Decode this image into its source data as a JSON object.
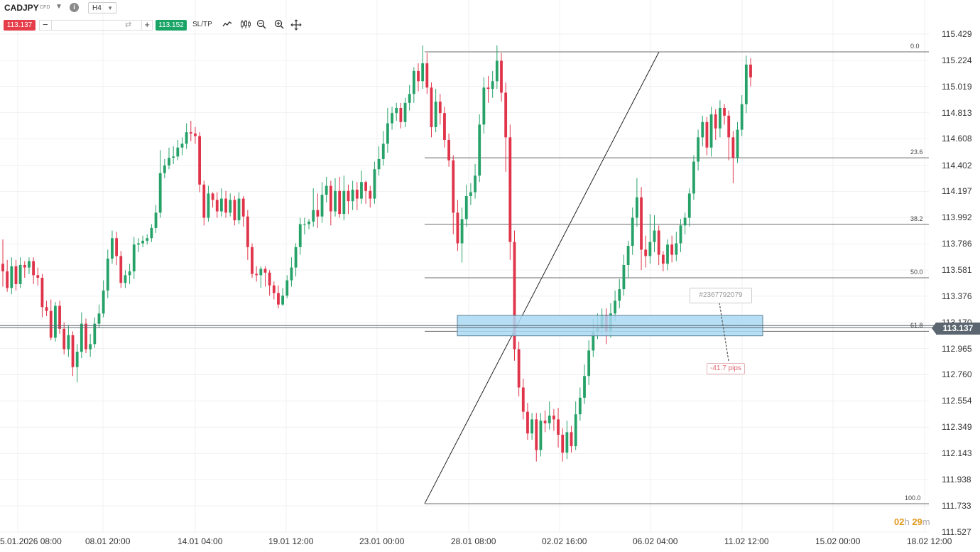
{
  "toolbar": {
    "symbol": "CADJPY",
    "instrument_type": "CFD",
    "dropdown_icon": "chevron-down-icon",
    "info_icon": "info-icon",
    "timeframe": "H4",
    "sell_price": "113.137",
    "buy_price": "113.152",
    "quantity_value": "",
    "sltp_label": "SL/TP",
    "tools": [
      "line-chart-icon",
      "candlestick-icon",
      "zoom-out-icon",
      "zoom-in-icon",
      "crosshair-icon"
    ],
    "sell_color": "#e53e4a",
    "buy_color": "#1aa567"
  },
  "price_axis": {
    "labels": [
      "115.429",
      "115.224",
      "115.019",
      "114.813",
      "114.608",
      "114.402",
      "114.197",
      "113.992",
      "113.786",
      "113.581",
      "113.376",
      "113.170",
      "112.965",
      "112.760",
      "112.554",
      "112.349",
      "112.143",
      "111.938",
      "111.733",
      "111.527"
    ],
    "current_price": "113.137"
  },
  "time_axis": {
    "labels": [
      "5.01.2026 08:00",
      "08.01 20:00",
      "14.01 04:00",
      "19.01 12:00",
      "23.01 00:00",
      "28.01 08:00",
      "02.02 16:00",
      "06.02 04:00",
      "11.02 12:00",
      "15.02 00:00",
      "18.02 12:00"
    ]
  },
  "fibonacci": {
    "levels": [
      {
        "label": "0.0",
        "price": 115.29
      },
      {
        "label": "23.6",
        "price": 114.46
      },
      {
        "label": "38.2",
        "price": 113.94
      },
      {
        "label": "50.0",
        "price": 113.52
      },
      {
        "label": "61.8",
        "price": 113.1
      },
      {
        "label": "100.0",
        "price": 111.75
      }
    ],
    "color": "#6b6b6b"
  },
  "zone": {
    "top": 113.225,
    "bottom": 113.065,
    "color": "#a9d8f2"
  },
  "order": {
    "label": "#2367792079",
    "pips": "-41.7 pips"
  },
  "candle_timer": {
    "hours": "02",
    "hours_unit": "h",
    "minutes": "29",
    "minutes_unit": "m"
  },
  "chart_data": {
    "type": "candlestick",
    "symbol": "CADJPY",
    "timeframe": "H4",
    "ylim": [
      111.527,
      115.429
    ],
    "up_color": "#26a269",
    "down_color": "#e0344a",
    "candles": [
      [
        113.63,
        113.57,
        113.82,
        113.45
      ],
      [
        113.57,
        113.44,
        113.66,
        113.41
      ],
      [
        113.44,
        113.61,
        113.68,
        113.39
      ],
      [
        113.61,
        113.47,
        113.66,
        113.42
      ],
      [
        113.47,
        113.62,
        113.68,
        113.44
      ],
      [
        113.62,
        113.6,
        113.65,
        113.52
      ],
      [
        113.6,
        113.65,
        113.68,
        113.55
      ],
      [
        113.65,
        113.54,
        113.68,
        113.47
      ],
      [
        113.54,
        113.52,
        113.6,
        113.46
      ],
      [
        113.52,
        113.29,
        113.55,
        113.21
      ],
      [
        113.29,
        113.26,
        113.34,
        113.22
      ],
      [
        113.26,
        113.05,
        113.35,
        113.03
      ],
      [
        113.05,
        113.3,
        113.33,
        113.02
      ],
      [
        113.3,
        113.12,
        113.34,
        113.08
      ],
      [
        113.12,
        112.96,
        113.17,
        112.92
      ],
      [
        112.96,
        113.07,
        113.15,
        112.9
      ],
      [
        113.07,
        112.82,
        113.1,
        112.75
      ],
      [
        112.82,
        112.94,
        113.0,
        112.7
      ],
      [
        112.94,
        113.16,
        113.25,
        112.89
      ],
      [
        113.16,
        112.96,
        113.2,
        112.93
      ],
      [
        112.96,
        113.0,
        113.08,
        112.9
      ],
      [
        113.0,
        113.16,
        113.21,
        112.97
      ],
      [
        113.16,
        113.24,
        113.31,
        113.13
      ],
      [
        113.24,
        113.42,
        113.5,
        113.21
      ],
      [
        113.42,
        113.67,
        113.74,
        113.36
      ],
      [
        113.67,
        113.83,
        113.89,
        113.63
      ],
      [
        113.83,
        113.69,
        113.88,
        113.62
      ],
      [
        113.69,
        113.48,
        113.73,
        113.44
      ],
      [
        113.48,
        113.54,
        113.58,
        113.44
      ],
      [
        113.54,
        113.57,
        113.63,
        113.47
      ],
      [
        113.57,
        113.78,
        113.84,
        113.51
      ],
      [
        113.78,
        113.79,
        113.83,
        113.72
      ],
      [
        113.79,
        113.81,
        113.85,
        113.76
      ],
      [
        113.81,
        113.83,
        113.86,
        113.78
      ],
      [
        113.83,
        113.91,
        113.94,
        113.8
      ],
      [
        113.91,
        114.03,
        114.09,
        113.87
      ],
      [
        114.03,
        114.34,
        114.52,
        113.99
      ],
      [
        114.34,
        114.4,
        114.45,
        114.3
      ],
      [
        114.4,
        114.46,
        114.54,
        114.37
      ],
      [
        114.46,
        114.47,
        114.55,
        114.41
      ],
      [
        114.47,
        114.54,
        114.6,
        114.44
      ],
      [
        114.54,
        114.57,
        114.62,
        114.48
      ],
      [
        114.57,
        114.66,
        114.73,
        114.53
      ],
      [
        114.66,
        114.65,
        114.75,
        114.59
      ],
      [
        114.65,
        114.63,
        114.7,
        114.57
      ],
      [
        114.63,
        114.25,
        114.66,
        114.19
      ],
      [
        114.25,
        113.99,
        114.28,
        113.93
      ],
      [
        113.99,
        114.18,
        114.24,
        113.96
      ],
      [
        114.18,
        114.13,
        114.19,
        114.07
      ],
      [
        114.13,
        114.04,
        114.19,
        113.99
      ],
      [
        114.04,
        114.14,
        114.22,
        114.0
      ],
      [
        114.14,
        114.03,
        114.2,
        113.99
      ],
      [
        114.03,
        114.13,
        114.18,
        114.0
      ],
      [
        114.13,
        113.97,
        114.16,
        113.93
      ],
      [
        113.97,
        114.14,
        114.19,
        113.94
      ],
      [
        114.14,
        114.0,
        114.16,
        113.92
      ],
      [
        114.0,
        113.76,
        114.05,
        113.66
      ],
      [
        113.76,
        113.55,
        113.79,
        113.52
      ],
      [
        113.55,
        113.54,
        113.61,
        113.49
      ],
      [
        113.54,
        113.59,
        113.61,
        113.44
      ],
      [
        113.59,
        113.56,
        113.61,
        113.45
      ],
      [
        113.56,
        113.46,
        113.58,
        113.38
      ],
      [
        113.46,
        113.4,
        113.49,
        113.35
      ],
      [
        113.4,
        113.31,
        113.46,
        113.28
      ],
      [
        113.31,
        113.38,
        113.44,
        113.3
      ],
      [
        113.38,
        113.5,
        113.54,
        113.36
      ],
      [
        113.5,
        113.6,
        113.68,
        113.45
      ],
      [
        113.6,
        113.76,
        113.79,
        113.53
      ],
      [
        113.76,
        113.94,
        113.99,
        113.7
      ],
      [
        113.94,
        113.94,
        113.99,
        113.86
      ],
      [
        113.94,
        113.96,
        113.98,
        113.9
      ],
      [
        113.96,
        114.05,
        114.22,
        113.92
      ],
      [
        114.05,
        114.0,
        114.18,
        113.91
      ],
      [
        114.0,
        114.17,
        114.27,
        113.95
      ],
      [
        114.17,
        114.24,
        114.31,
        114.11
      ],
      [
        114.24,
        114.04,
        114.28,
        113.93
      ],
      [
        114.04,
        114.2,
        114.3,
        114.0
      ],
      [
        114.2,
        114.02,
        114.31,
        113.99
      ],
      [
        114.02,
        114.2,
        114.32,
        113.97
      ],
      [
        114.2,
        114.12,
        114.25,
        114.02
      ],
      [
        114.12,
        114.21,
        114.28,
        114.05
      ],
      [
        114.21,
        114.14,
        114.27,
        114.05
      ],
      [
        114.14,
        114.27,
        114.36,
        114.1
      ],
      [
        114.27,
        114.2,
        114.28,
        114.1
      ],
      [
        114.2,
        114.14,
        114.24,
        114.07
      ],
      [
        114.14,
        114.37,
        114.43,
        114.1
      ],
      [
        114.37,
        114.45,
        114.55,
        114.32
      ],
      [
        114.45,
        114.57,
        114.67,
        114.4
      ],
      [
        114.57,
        114.73,
        114.85,
        114.5
      ],
      [
        114.73,
        114.81,
        114.86,
        114.68
      ],
      [
        114.81,
        114.85,
        114.89,
        114.75
      ],
      [
        114.85,
        114.74,
        114.89,
        114.69
      ],
      [
        114.74,
        114.89,
        114.93,
        114.7
      ],
      [
        114.89,
        114.96,
        115.03,
        114.83
      ],
      [
        114.96,
        115.14,
        115.17,
        114.89
      ],
      [
        115.14,
        115.06,
        115.2,
        114.98
      ],
      [
        115.06,
        115.2,
        115.34,
        115.0
      ],
      [
        115.2,
        115.01,
        115.28,
        114.96
      ],
      [
        115.01,
        114.7,
        115.05,
        114.62
      ],
      [
        114.7,
        114.9,
        115.0,
        114.66
      ],
      [
        114.9,
        114.81,
        114.96,
        114.72
      ],
      [
        114.81,
        114.6,
        114.86,
        114.54
      ],
      [
        114.6,
        114.44,
        114.65,
        114.39
      ],
      [
        114.44,
        114.03,
        114.48,
        113.86
      ],
      [
        114.03,
        113.79,
        114.13,
        113.73
      ],
      [
        113.79,
        113.98,
        114.07,
        113.64
      ],
      [
        113.98,
        114.16,
        114.25,
        113.92
      ],
      [
        114.16,
        114.19,
        114.26,
        114.09
      ],
      [
        114.19,
        114.32,
        114.41,
        114.14
      ],
      [
        114.32,
        114.72,
        114.8,
        114.27
      ],
      [
        114.72,
        115.01,
        115.09,
        114.65
      ],
      [
        115.01,
        115.0,
        115.1,
        114.89
      ],
      [
        115.0,
        115.06,
        115.14,
        114.93
      ],
      [
        115.06,
        115.22,
        115.34,
        115.0
      ],
      [
        115.22,
        114.97,
        115.28,
        114.9
      ],
      [
        114.97,
        114.62,
        115.05,
        114.35
      ],
      [
        114.62,
        113.8,
        114.72,
        113.66
      ],
      [
        113.8,
        112.96,
        113.89,
        112.87
      ],
      [
        112.96,
        112.66,
        113.02,
        112.59
      ],
      [
        112.66,
        112.47,
        112.73,
        112.41
      ],
      [
        112.47,
        112.3,
        112.54,
        112.25
      ],
      [
        112.3,
        112.41,
        112.46,
        112.25
      ],
      [
        112.41,
        112.17,
        112.46,
        112.08
      ],
      [
        112.17,
        112.4,
        112.46,
        112.12
      ],
      [
        112.4,
        112.38,
        112.48,
        112.31
      ],
      [
        112.38,
        112.44,
        112.55,
        112.33
      ],
      [
        112.44,
        112.41,
        112.49,
        112.32
      ],
      [
        112.41,
        112.29,
        112.5,
        112.19
      ],
      [
        112.29,
        112.15,
        112.34,
        112.08
      ],
      [
        112.15,
        112.31,
        112.4,
        112.1
      ],
      [
        112.31,
        112.2,
        112.36,
        112.15
      ],
      [
        112.2,
        112.45,
        112.55,
        112.17
      ],
      [
        112.45,
        112.58,
        112.66,
        112.4
      ],
      [
        112.58,
        112.75,
        112.84,
        112.53
      ],
      [
        112.75,
        112.95,
        113.03,
        112.68
      ],
      [
        112.95,
        113.1,
        113.2,
        112.9
      ],
      [
        113.1,
        113.13,
        113.24,
        113.04
      ],
      [
        113.13,
        113.23,
        113.28,
        113.08
      ],
      [
        113.23,
        113.1,
        113.28,
        113.0
      ],
      [
        113.1,
        113.24,
        113.32,
        113.05
      ],
      [
        113.24,
        113.34,
        113.42,
        113.18
      ],
      [
        113.34,
        113.43,
        113.51,
        113.28
      ],
      [
        113.43,
        113.62,
        113.7,
        113.38
      ],
      [
        113.62,
        113.77,
        113.81,
        113.52
      ],
      [
        113.77,
        113.99,
        114.07,
        113.7
      ],
      [
        113.99,
        114.15,
        114.3,
        113.92
      ],
      [
        114.15,
        113.74,
        114.23,
        113.58
      ],
      [
        113.74,
        113.69,
        113.85,
        113.6
      ],
      [
        113.69,
        113.8,
        114.02,
        113.63
      ],
      [
        113.8,
        113.89,
        114.01,
        113.72
      ],
      [
        113.89,
        113.7,
        113.93,
        113.62
      ],
      [
        113.7,
        113.63,
        113.73,
        113.57
      ],
      [
        113.63,
        113.78,
        113.82,
        113.58
      ],
      [
        113.78,
        113.7,
        113.85,
        113.64
      ],
      [
        113.7,
        113.79,
        113.88,
        113.65
      ],
      [
        113.79,
        113.93,
        113.98,
        113.72
      ],
      [
        113.93,
        113.99,
        114.03,
        113.86
      ],
      [
        113.99,
        114.18,
        114.22,
        113.92
      ],
      [
        114.18,
        114.43,
        114.48,
        114.13
      ],
      [
        114.43,
        114.62,
        114.68,
        114.36
      ],
      [
        114.62,
        114.74,
        114.79,
        114.55
      ],
      [
        114.74,
        114.54,
        114.78,
        114.48
      ],
      [
        114.54,
        114.8,
        114.86,
        114.47
      ],
      [
        114.8,
        114.69,
        114.84,
        114.6
      ],
      [
        114.69,
        114.85,
        114.91,
        114.62
      ],
      [
        114.85,
        114.79,
        114.88,
        114.72
      ],
      [
        114.79,
        114.62,
        114.83,
        114.44
      ],
      [
        114.62,
        114.46,
        114.67,
        114.26
      ],
      [
        114.46,
        114.68,
        114.74,
        114.42
      ],
      [
        114.68,
        114.88,
        114.95,
        114.63
      ],
      [
        114.88,
        115.19,
        115.26,
        114.81
      ],
      [
        115.19,
        115.09,
        115.24,
        115.02
      ]
    ]
  }
}
